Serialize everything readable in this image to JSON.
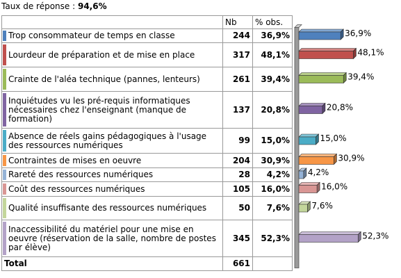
{
  "header": {
    "label": "Taux de réponse :",
    "value": "94,6%"
  },
  "table": {
    "headers": [
      "Nb",
      "% obs."
    ],
    "rows": [
      {
        "label": "Trop consommateur de temps en classe",
        "nb": 244
      },
      {
        "label": "Lourdeur de préparation et de mise en place",
        "nb": 317
      },
      {
        "label": "Crainte de l'aléa technique (pannes, lenteurs)",
        "nb": 261
      },
      {
        "label": "Inquiétudes vu les pré-requis informatiques nécessaires chez l'enseignant (manque de formation)",
        "nb": 137
      },
      {
        "label": "Absence de réels gains pédagogiques à l'usage des  ressources numériques",
        "nb": 99
      },
      {
        "label": "Contraintes de mises en oeuvre",
        "nb": 204
      },
      {
        "label": "Rareté des ressources numériques",
        "nb": 28
      },
      {
        "label": "Coût des ressources numériques",
        "nb": 105
      },
      {
        "label": "Qualité insuffisante des ressources numériques",
        "nb": 50
      },
      {
        "label": "Inaccessibilité du matériel pour une mise en oeuvre (réservation de la salle, nombre de postes par élève)",
        "nb": 345
      }
    ],
    "total_label": "Total",
    "total": 661
  },
  "chart_data": {
    "type": "bar",
    "orientation": "horizontal",
    "values": [
      36.9,
      48.1,
      39.4,
      20.8,
      15.0,
      30.9,
      4.2,
      16.0,
      7.6,
      52.3
    ],
    "value_labels": [
      "36,9%",
      "48,1%",
      "39,4%",
      "20,8%",
      "15,0%",
      "30,9%",
      "4,2%",
      "16,0%",
      "7,6%",
      "52,3%"
    ],
    "colors": [
      "#4f81bd",
      "#c0504d",
      "#9bbb59",
      "#8064a2",
      "#4bacc6",
      "#f79646",
      "#95b3d7",
      "#d99694",
      "#c3d69b",
      "#b3a2c7"
    ]
  }
}
